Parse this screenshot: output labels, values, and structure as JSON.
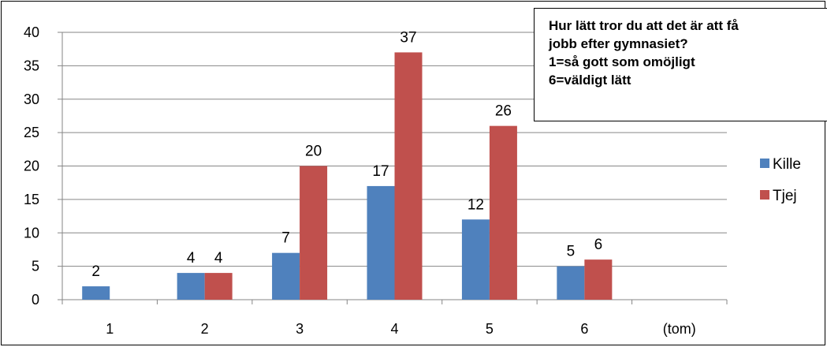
{
  "chart_data": {
    "type": "bar",
    "title": [
      "Hur lätt tror du att det är att få",
      "jobb efter gymnasiet?",
      "1=så gott som omöjligt",
      "6=väldigt lätt"
    ],
    "categories": [
      "1",
      "2",
      "3",
      "4",
      "5",
      "6",
      "(tom)"
    ],
    "series": [
      {
        "name": "Kille",
        "color": "#4f81bd",
        "values": [
          2,
          4,
          7,
          17,
          12,
          5,
          null
        ]
      },
      {
        "name": "Tjej",
        "color": "#c0504d",
        "values": [
          null,
          4,
          20,
          37,
          26,
          6,
          null
        ]
      }
    ],
    "ylim": [
      0,
      40
    ],
    "yticks": [
      0,
      5,
      10,
      15,
      20,
      25,
      30,
      35,
      40
    ],
    "grid": true,
    "legend": "right"
  }
}
